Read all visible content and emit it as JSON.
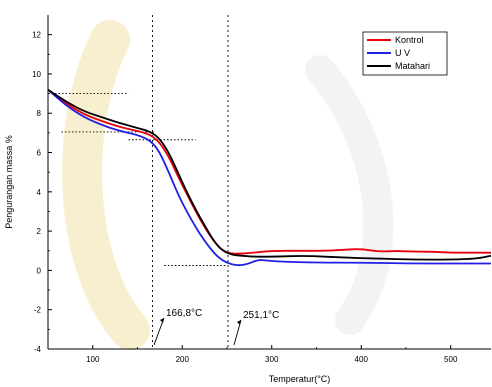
{
  "chart_data": {
    "type": "line",
    "xlabel": "Temperatur(°C)",
    "ylabel": "Pengurangan massa %",
    "xlim": [
      50,
      545
    ],
    "ylim": [
      -4,
      13
    ],
    "xticks": [
      100,
      200,
      300,
      400,
      500
    ],
    "yticks": [
      -4,
      -2,
      0,
      2,
      4,
      6,
      8,
      10,
      12
    ],
    "legend_position": "top-right",
    "series": [
      {
        "name": "Kontrol",
        "color": "#e8000b",
        "x": [
          50,
          70,
          90,
          110,
          130,
          150,
          165,
          175,
          185,
          195,
          205,
          215,
          225,
          235,
          245,
          255,
          265,
          280,
          300,
          330,
          360,
          380,
          400,
          420,
          440,
          460,
          480,
          500,
          520,
          545
        ],
        "y": [
          9.2,
          8.5,
          7.95,
          7.6,
          7.3,
          7.1,
          6.9,
          6.5,
          5.8,
          4.8,
          3.9,
          3.0,
          2.2,
          1.5,
          1.0,
          0.85,
          0.85,
          0.9,
          1.0,
          1.0,
          1.0,
          1.05,
          1.1,
          0.95,
          1.0,
          0.95,
          0.95,
          0.9,
          0.9,
          0.9
        ]
      },
      {
        "name": "U V",
        "color": "#1f1fe6",
        "x": [
          50,
          70,
          90,
          110,
          130,
          150,
          165,
          175,
          185,
          195,
          205,
          215,
          225,
          235,
          245,
          255,
          265,
          275,
          285,
          295,
          310,
          350,
          400,
          450,
          500,
          545
        ],
        "y": [
          9.2,
          8.4,
          7.8,
          7.4,
          7.1,
          6.9,
          6.6,
          6.0,
          5.0,
          3.9,
          3.0,
          2.2,
          1.5,
          0.9,
          0.5,
          0.3,
          0.25,
          0.35,
          0.55,
          0.5,
          0.45,
          0.4,
          0.4,
          0.35,
          0.35,
          0.35
        ]
      },
      {
        "name": "Matahari",
        "color": "#000000",
        "x": [
          50,
          70,
          90,
          110,
          130,
          150,
          165,
          175,
          185,
          195,
          205,
          215,
          225,
          235,
          245,
          255,
          265,
          280,
          300,
          340,
          380,
          420,
          460,
          500,
          530,
          545
        ],
        "y": [
          9.2,
          8.6,
          8.1,
          7.8,
          7.5,
          7.25,
          7.05,
          6.7,
          6.0,
          5.0,
          4.0,
          3.1,
          2.3,
          1.5,
          1.0,
          0.8,
          0.75,
          0.7,
          0.7,
          0.75,
          0.65,
          0.6,
          0.55,
          0.55,
          0.6,
          0.75
        ]
      }
    ],
    "annotations": [
      {
        "text": "166,8°C",
        "x": 166.8
      },
      {
        "text": "251,1°C",
        "x": 251.1
      }
    ]
  }
}
